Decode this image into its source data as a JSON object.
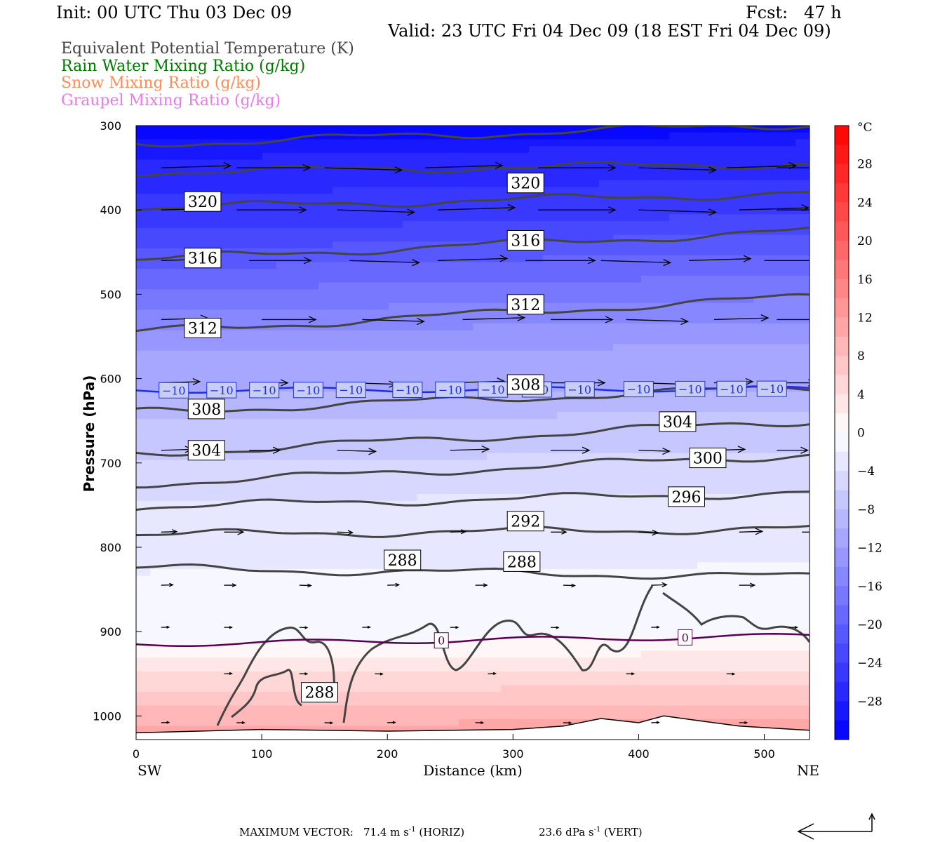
{
  "header": {
    "init": "Init: 00 UTC Thu 03 Dec 09",
    "fcst": "Fcst:   47 h",
    "valid": "Valid: 23 UTC Fri 04 Dec 09 (18 EST Fri 04 Dec 09)"
  },
  "legend": [
    {
      "label": "Equivalent Potential Temperature (K)",
      "color": "#444444"
    },
    {
      "label": "Rain Water Mixing Ratio (g/kg)",
      "color": "#007a00"
    },
    {
      "label": "Snow Mixing Ratio (g/kg)",
      "color": "#ff8c55"
    },
    {
      "label": "Graupel Mixing Ratio (g/kg)",
      "color": "#ee77ee"
    }
  ],
  "footer": {
    "max_vector_label": "MAXIMUM VECTOR:",
    "horiz_value": "71.4 m s",
    "horiz_unit": "(HORIZ)",
    "vert_value": "23.6 dPa s",
    "vert_unit": "(VERT)",
    "exponent": "-1"
  },
  "chart_data": {
    "type": "cross-section",
    "xlabel": "Distance (km)",
    "ylabel": "Pressure (hPa)",
    "x_ticks": [
      0,
      100,
      200,
      300,
      400,
      500
    ],
    "y_ticks": [
      300,
      400,
      500,
      600,
      700,
      800,
      900,
      1000
    ],
    "xlim": [
      0,
      536
    ],
    "ylim": [
      300,
      1028
    ],
    "y_inverted": true,
    "x_end_labels": {
      "left": "SW",
      "right": "NE"
    },
    "colorbar": {
      "unit": "°C",
      "tick_labels": [
        "28",
        "24",
        "20",
        "16",
        "12",
        "8",
        "4",
        "0",
        "−4",
        "−8",
        "−12",
        "−16",
        "−20",
        "−24",
        "−28"
      ],
      "tick_values": [
        28,
        24,
        20,
        16,
        12,
        8,
        4,
        0,
        -4,
        -8,
        -12,
        -16,
        -20,
        -24,
        -28
      ],
      "range": [
        -32,
        32
      ]
    },
    "temperature_field": {
      "isotherm_pressure_at_dist": [
        {
          "T": -28,
          "x": [
            0,
            536
          ],
          "p": [
            340,
            320
          ]
        },
        {
          "T": -24,
          "x": [
            0,
            536
          ],
          "p": [
            425,
            405
          ]
        },
        {
          "T": -20,
          "x": [
            0,
            536
          ],
          "p": [
            470,
            450
          ]
        },
        {
          "T": -16,
          "x": [
            0,
            536
          ],
          "p": [
            520,
            505
          ]
        },
        {
          "T": -12,
          "x": [
            0,
            536
          ],
          "p": [
            570,
            560
          ]
        },
        {
          "T": -10,
          "x": [
            0,
            536
          ],
          "p": [
            614,
            612
          ]
        },
        {
          "T": -8,
          "x": [
            0,
            536
          ],
          "p": [
            650,
            640
          ]
        },
        {
          "T": -4,
          "x": [
            0,
            536
          ],
          "p": [
            745,
            735
          ]
        },
        {
          "T": 0,
          "x": [
            0,
            536
          ],
          "p": [
            915,
            905
          ]
        },
        {
          "T": 4,
          "x": [
            0,
            536
          ],
          "p": [
            950,
            945
          ]
        },
        {
          "T": 8,
          "x": [
            0,
            536
          ],
          "p": [
            990,
            985
          ]
        }
      ],
      "temp_labels": [
        {
          "value": "−10",
          "x": [
            30,
            68,
            102,
            137,
            171,
            216,
            250,
            284,
            319,
            353,
            400,
            441,
            474,
            506
          ]
        },
        {
          "value": "0",
          "x": [
            243,
            437
          ]
        }
      ]
    },
    "theta_e_contours": [
      {
        "value": 320,
        "x": [
          0,
          536
        ],
        "p": [
          322,
          298
        ]
      },
      {
        "value": 320,
        "x": [
          0,
          536
        ],
        "p": [
          355,
          345
        ]
      },
      {
        "value": 320,
        "x": [
          0,
          536
        ],
        "p": [
          398,
          380
        ]
      },
      {
        "value": 316,
        "x": [
          0,
          536
        ],
        "p": [
          459,
          425
        ]
      },
      {
        "value": 312,
        "x": [
          0,
          536
        ],
        "p": [
          545,
          503
        ]
      },
      {
        "value": 308,
        "x": [
          0,
          536
        ],
        "p": [
          640,
          610
        ]
      },
      {
        "value": 304,
        "x": [
          0,
          536
        ],
        "p": [
          690,
          650
        ]
      },
      {
        "value": 300,
        "x": [
          0,
          536
        ],
        "p": [
          725,
          690
        ]
      },
      {
        "value": 296,
        "x": [
          0,
          536
        ],
        "p": [
          752,
          735
        ]
      },
      {
        "value": 292,
        "x": [
          0,
          536
        ],
        "p": [
          785,
          778
        ]
      },
      {
        "value": 288,
        "x": [
          0,
          536
        ],
        "p": [
          825,
          835
        ]
      }
    ],
    "theta_e_labels": [
      {
        "value": "320",
        "x": 53,
        "p": 390
      },
      {
        "value": "320",
        "x": 310,
        "p": 368
      },
      {
        "value": "316",
        "x": 53,
        "p": 457
      },
      {
        "value": "316",
        "x": 310,
        "p": 436
      },
      {
        "value": "312",
        "x": 53,
        "p": 540
      },
      {
        "value": "312",
        "x": 310,
        "p": 512
      },
      {
        "value": "308",
        "x": 56,
        "p": 636
      },
      {
        "value": "308",
        "x": 310,
        "p": 607
      },
      {
        "value": "304",
        "x": 56,
        "p": 685
      },
      {
        "value": "304",
        "x": 431,
        "p": 651
      },
      {
        "value": "300",
        "x": 455,
        "p": 694
      },
      {
        "value": "296",
        "x": 438,
        "p": 740
      },
      {
        "value": "292",
        "x": 310,
        "p": 769
      },
      {
        "value": "288",
        "x": 212,
        "p": 815
      },
      {
        "value": "288",
        "x": 307,
        "p": 817
      },
      {
        "value": "288",
        "x": 146,
        "p": 972
      }
    ],
    "wind_vectors": {
      "note": "horizontal wind arrows on pressure levels (u component, relative length)",
      "levels": [
        {
          "p": 350,
          "x": [
            20,
            80,
            150,
            230,
            320,
            400,
            470,
            510
          ],
          "len": [
            0.9,
            0.95,
            1.0,
            1.0,
            1.0,
            1.0,
            0.9,
            0.8
          ]
        },
        {
          "p": 400,
          "x": [
            20,
            80,
            160,
            240,
            320,
            400,
            480,
            510
          ],
          "len": [
            0.7,
            0.9,
            1.0,
            1.0,
            1.0,
            1.0,
            0.9,
            0.8
          ]
        },
        {
          "p": 460,
          "x": [
            20,
            90,
            170,
            240,
            310,
            370,
            440,
            500
          ],
          "len": [
            0.6,
            0.8,
            0.9,
            0.9,
            0.9,
            0.9,
            0.8,
            0.7
          ]
        },
        {
          "p": 530,
          "x": [
            20,
            100,
            180,
            260,
            330,
            390,
            460,
            510
          ],
          "len": [
            0.6,
            0.7,
            0.8,
            0.8,
            0.8,
            0.8,
            0.7,
            0.6
          ]
        },
        {
          "p": 605,
          "x": [
            20,
            90,
            170,
            250,
            330,
            400,
            460,
            510
          ],
          "len": [
            0.5,
            0.5,
            0.6,
            0.7,
            0.7,
            0.6,
            0.5,
            0.5
          ]
        },
        {
          "p": 685,
          "x": [
            20,
            90,
            160,
            250,
            330,
            400,
            460,
            510
          ],
          "len": [
            0.4,
            0.4,
            0.5,
            0.5,
            0.5,
            0.4,
            0.4,
            0.4
          ]
        },
        {
          "p": 782,
          "x": [
            20,
            70,
            160,
            250,
            330,
            400,
            480,
            530
          ],
          "len": [
            0.2,
            0.25,
            0.2,
            0.2,
            0.2,
            0.25,
            0.3,
            0.2
          ]
        },
        {
          "p": 845,
          "x": [
            20,
            70,
            130,
            200,
            270,
            340,
            410,
            480
          ],
          "len": [
            0.15,
            0.15,
            0.15,
            0.15,
            0.15,
            0.15,
            0.2,
            0.2
          ]
        },
        {
          "p": 895,
          "x": [
            20,
            70,
            130,
            180,
            250,
            330,
            410,
            520
          ],
          "len": [
            0.1,
            0.1,
            0.1,
            0.1,
            0.1,
            0.1,
            0.1,
            0.1
          ]
        },
        {
          "p": 950,
          "x": [
            70,
            130,
            190,
            280,
            390,
            470
          ],
          "len": [
            0.1,
            0.1,
            0.1,
            0.1,
            0.1,
            0.1
          ]
        },
        {
          "p": 1008,
          "x": [
            20,
            80,
            150,
            200,
            270,
            340,
            410,
            480
          ],
          "len": [
            0.1,
            0.1,
            0.1,
            0.1,
            0.1,
            0.1,
            0.1,
            0.1
          ]
        }
      ]
    },
    "surface_pressure": {
      "x": [
        0,
        100,
        200,
        300,
        340,
        370,
        400,
        420,
        450,
        480,
        536
      ],
      "p": [
        1020,
        1016,
        1018,
        1016,
        1012,
        1003,
        1008,
        1000,
        1006,
        1012,
        1017
      ]
    }
  }
}
